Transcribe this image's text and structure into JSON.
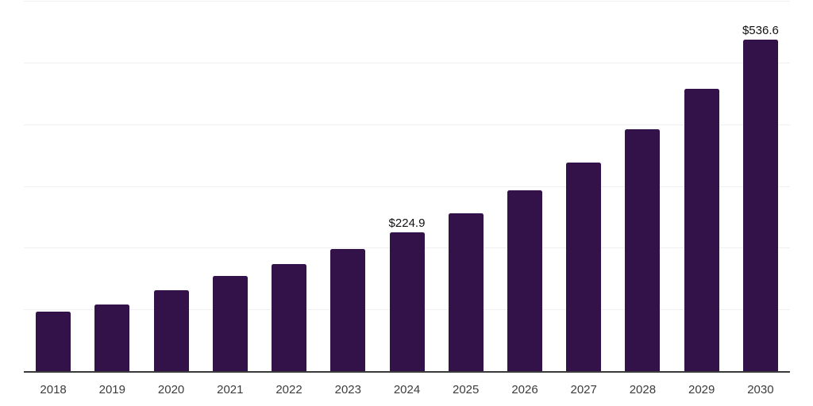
{
  "chart_data": {
    "type": "bar",
    "title": "",
    "xlabel": "",
    "ylabel": "",
    "categories": [
      "2018",
      "2019",
      "2020",
      "2021",
      "2022",
      "2023",
      "2024",
      "2025",
      "2026",
      "2027",
      "2028",
      "2029",
      "2030"
    ],
    "values": [
      96.5,
      108.2,
      131.3,
      154.3,
      173.7,
      198.0,
      224.9,
      256.1,
      293.3,
      338.1,
      391.6,
      457.5,
      536.6
    ],
    "data_labels": [
      null,
      null,
      null,
      null,
      null,
      null,
      "$224.9",
      null,
      null,
      null,
      null,
      null,
      "$536.6"
    ],
    "value_prefix": "$",
    "ylim": [
      0,
      600
    ],
    "gridline_step": 100,
    "grid": "horizontal-only",
    "legend": "none",
    "colors": {
      "bar": "#33124A",
      "axis_line": "#3A3A3A",
      "gridline": "#F0F0F3",
      "tick_label": "#3C3C3C",
      "data_label": "#111111",
      "background": "#FFFFFF"
    }
  }
}
